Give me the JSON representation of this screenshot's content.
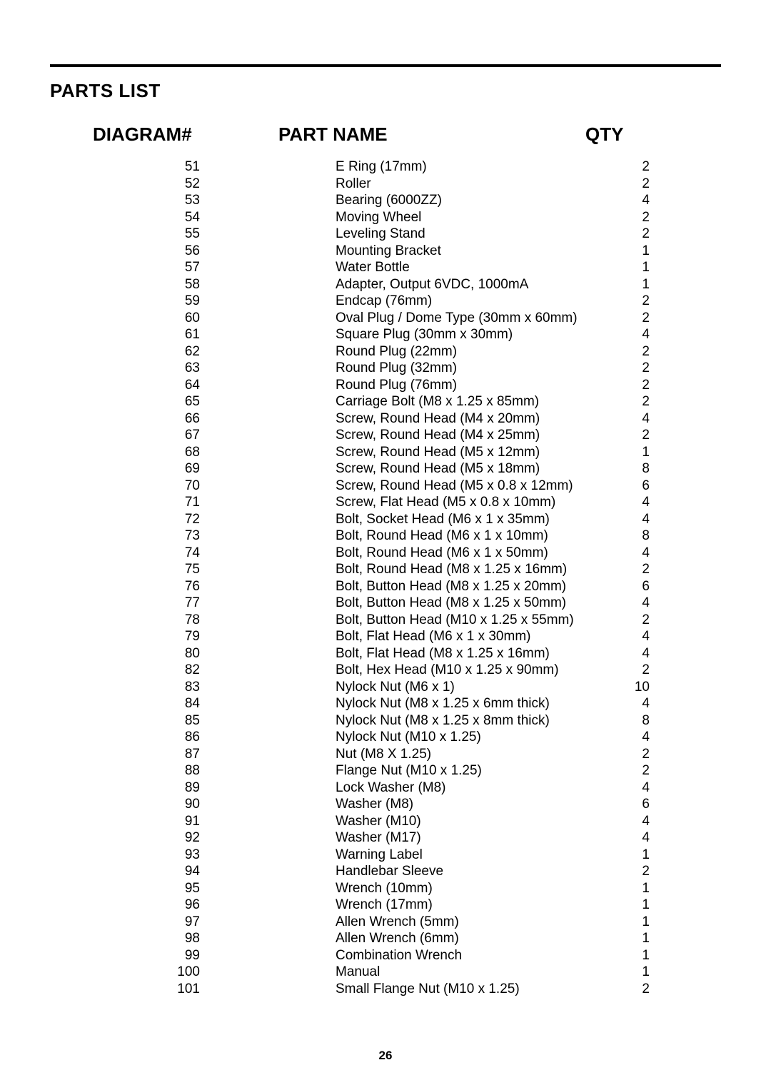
{
  "section_title": "PARTS LIST",
  "headers": {
    "diagram": "DIAGRAM#",
    "part_name": "PART NAME",
    "qty": "QTY"
  },
  "page_number": "26",
  "rows": [
    {
      "diagram": "51",
      "part": "E Ring (17mm)",
      "qty": "2"
    },
    {
      "diagram": "52",
      "part": "Roller",
      "qty": "2"
    },
    {
      "diagram": "53",
      "part": "Bearing (6000ZZ)",
      "qty": "4"
    },
    {
      "diagram": "54",
      "part": "Moving Wheel",
      "qty": "2"
    },
    {
      "diagram": "55",
      "part": "Leveling Stand",
      "qty": "2"
    },
    {
      "diagram": "56",
      "part": "Mounting Bracket",
      "qty": "1"
    },
    {
      "diagram": "57",
      "part": "Water Bottle",
      "qty": "1"
    },
    {
      "diagram": "58",
      "part": "Adapter, Output 6VDC, 1000mA",
      "qty": "1"
    },
    {
      "diagram": "59",
      "part": "Endcap (76mm)",
      "qty": "2"
    },
    {
      "diagram": "60",
      "part": "Oval Plug / Dome Type (30mm x 60mm)",
      "qty": "2"
    },
    {
      "diagram": "61",
      "part": "Square Plug (30mm x 30mm)",
      "qty": "4"
    },
    {
      "diagram": "62",
      "part": "Round Plug (22mm)",
      "qty": "2"
    },
    {
      "diagram": "63",
      "part": "Round Plug (32mm)",
      "qty": "2"
    },
    {
      "diagram": "64",
      "part": "Round Plug (76mm)",
      "qty": "2"
    },
    {
      "diagram": "65",
      "part": "Carriage Bolt (M8 x 1.25 x 85mm)",
      "qty": "2"
    },
    {
      "diagram": "66",
      "part": "Screw, Round Head (M4 x 20mm)",
      "qty": "4"
    },
    {
      "diagram": "67",
      "part": "Screw, Round Head (M4 x 25mm)",
      "qty": "2"
    },
    {
      "diagram": "68",
      "part": "Screw, Round Head (M5 x 12mm)",
      "qty": "1"
    },
    {
      "diagram": "69",
      "part": "Screw, Round Head (M5 x 18mm)",
      "qty": "8"
    },
    {
      "diagram": "70",
      "part": "Screw, Round Head (M5 x 0.8 x 12mm)",
      "qty": "6"
    },
    {
      "diagram": "71",
      "part": "Screw, Flat Head (M5 x 0.8 x 10mm)",
      "qty": "4"
    },
    {
      "diagram": "72",
      "part": "Bolt, Socket Head (M6 x 1 x 35mm)",
      "qty": "4"
    },
    {
      "diagram": "73",
      "part": "Bolt, Round Head (M6 x 1 x 10mm)",
      "qty": "8"
    },
    {
      "diagram": "74",
      "part": "Bolt, Round Head (M6 x 1 x 50mm)",
      "qty": "4"
    },
    {
      "diagram": "75",
      "part": "Bolt, Round Head (M8 x 1.25 x 16mm)",
      "qty": "2"
    },
    {
      "diagram": "76",
      "part": "Bolt, Button Head (M8 x 1.25 x 20mm)",
      "qty": "6"
    },
    {
      "diagram": "77",
      "part": "Bolt, Button Head (M8 x 1.25 x 50mm)",
      "qty": "4"
    },
    {
      "diagram": "78",
      "part": "Bolt, Button Head (M10 x 1.25 x 55mm)",
      "qty": "2"
    },
    {
      "diagram": "79",
      "part": "Bolt, Flat Head (M6 x 1 x 30mm)",
      "qty": "4"
    },
    {
      "diagram": "80",
      "part": "Bolt, Flat Head (M8 x 1.25 x 16mm)",
      "qty": "4"
    },
    {
      "diagram": "82",
      "part": "Bolt, Hex Head (M10 x 1.25 x 90mm)",
      "qty": "2"
    },
    {
      "diagram": "83",
      "part": "Nylock Nut (M6 x 1)",
      "qty": "10"
    },
    {
      "diagram": "84",
      "part": "Nylock Nut (M8 x 1.25 x 6mm thick)",
      "qty": "4"
    },
    {
      "diagram": "85",
      "part": "Nylock Nut (M8 x 1.25 x 8mm thick)",
      "qty": "8"
    },
    {
      "diagram": "86",
      "part": "Nylock Nut (M10 x 1.25)",
      "qty": "4"
    },
    {
      "diagram": "87",
      "part": "Nut (M8 X 1.25)",
      "qty": "2"
    },
    {
      "diagram": "88",
      "part": "Flange Nut (M10 x 1.25)",
      "qty": "2"
    },
    {
      "diagram": "89",
      "part": "Lock Washer (M8)",
      "qty": "4"
    },
    {
      "diagram": "90",
      "part": "Washer (M8)",
      "qty": "6"
    },
    {
      "diagram": "91",
      "part": "Washer (M10)",
      "qty": "4"
    },
    {
      "diagram": "92",
      "part": "Washer (M17)",
      "qty": "4"
    },
    {
      "diagram": "93",
      "part": "Warning Label",
      "qty": "1"
    },
    {
      "diagram": "94",
      "part": "Handlebar Sleeve",
      "qty": "2"
    },
    {
      "diagram": "95",
      "part": "Wrench (10mm)",
      "qty": "1"
    },
    {
      "diagram": "96",
      "part": "Wrench (17mm)",
      "qty": "1"
    },
    {
      "diagram": "97",
      "part": "Allen Wrench (5mm)",
      "qty": "1"
    },
    {
      "diagram": "98",
      "part": "Allen Wrench (6mm)",
      "qty": "1"
    },
    {
      "diagram": "99",
      "part": "Combination Wrench",
      "qty": "1"
    },
    {
      "diagram": "100",
      "part": "Manual",
      "qty": "1"
    },
    {
      "diagram": "101",
      "part": "Small Flange Nut (M10 x 1.25)",
      "qty": "2"
    }
  ]
}
